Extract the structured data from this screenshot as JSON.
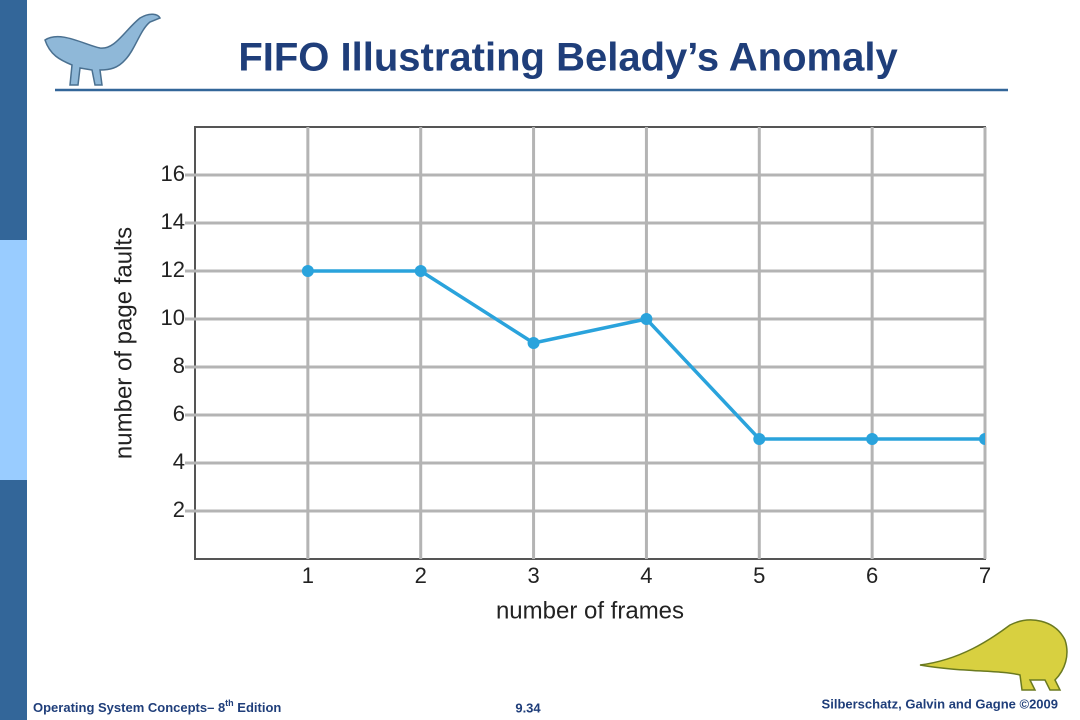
{
  "chart_data": {
    "type": "line",
    "title": "FIFO Illustrating Belady’s Anomaly",
    "x_label": "number of frames",
    "y_label": "number of page faults",
    "x": [
      1,
      2,
      3,
      4,
      5,
      6,
      7
    ],
    "series": [
      {
        "color": "#2aa3dc",
        "values": [
          12,
          12,
          9,
          10,
          5,
          5,
          5
        ]
      }
    ],
    "xlim": [
      0,
      7
    ],
    "xticks": [
      1,
      2,
      3,
      4,
      5,
      6,
      7
    ],
    "ylim": [
      0,
      18
    ],
    "yticks": [
      2,
      4,
      6,
      8,
      10,
      12,
      14,
      16
    ],
    "grid": true
  },
  "footer": {
    "left": "Operating System Concepts– 8",
    "left_sup": "th",
    "left_end": " Edition",
    "center": "9.34",
    "right": "Silberschatz, Galvin and Gagne ©2009"
  }
}
